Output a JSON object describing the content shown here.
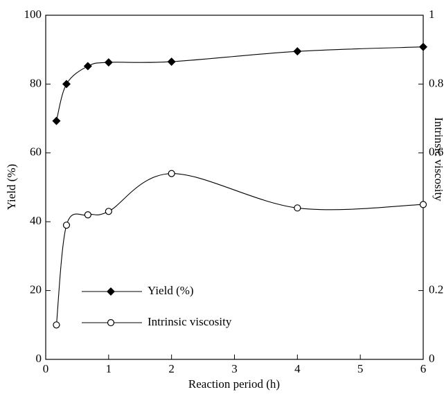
{
  "chart_data": {
    "type": "line",
    "xlabel": "Reaction period (h)",
    "ylabel": "Yield (%)",
    "y2label": "Intrinsic viscosity",
    "x": [
      0.17,
      0.33,
      0.67,
      1,
      2,
      4,
      6
    ],
    "series": [
      {
        "name": "Yield (%)",
        "color": "#000000",
        "marker": "diamond",
        "values": [
          69.3,
          80,
          85.2,
          86.3,
          86.5,
          89.5,
          90.8
        ]
      },
      {
        "name": "Intrinsic viscosity",
        "color": "#000000",
        "marker": "open-circle",
        "axis": "y2",
        "values": [
          0.1,
          0.39,
          0.42,
          0.43,
          0.54,
          0.44,
          0.45
        ]
      }
    ],
    "xlim": [
      0,
      6
    ],
    "xticks": [
      0,
      1,
      2,
      3,
      4,
      5,
      6
    ],
    "ylim": [
      0,
      100
    ],
    "yticks": [
      0,
      20,
      40,
      60,
      80,
      100
    ],
    "y2lim": [
      0,
      1
    ],
    "y2ticks": [
      0,
      0.2,
      0.6,
      0.8,
      1
    ],
    "legend_position": "lower left",
    "grid": false
  }
}
